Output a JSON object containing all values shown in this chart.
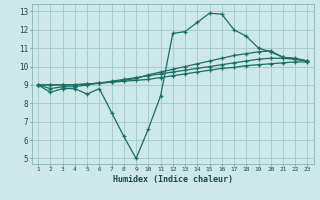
{
  "xlabel": "Humidex (Indice chaleur)",
  "bg_color": "#cce8e8",
  "grid_color": "#aacccc",
  "line_color": "#1a6e64",
  "xlim": [
    0.5,
    23.5
  ],
  "ylim": [
    4.7,
    13.4
  ],
  "xticks": [
    1,
    2,
    3,
    4,
    5,
    6,
    7,
    8,
    9,
    10,
    11,
    12,
    13,
    14,
    15,
    16,
    17,
    18,
    19,
    20,
    21,
    22,
    23
  ],
  "yticks": [
    5,
    6,
    7,
    8,
    9,
    10,
    11,
    12,
    13
  ],
  "lines": [
    [
      9.0,
      8.6,
      8.8,
      8.8,
      8.5,
      8.8,
      7.5,
      6.2,
      5.0,
      6.6,
      8.4,
      11.8,
      11.9,
      12.4,
      12.9,
      12.85,
      12.0,
      11.65,
      11.0,
      10.8,
      10.5,
      10.4,
      10.3
    ],
    [
      9.0,
      8.8,
      8.9,
      8.9,
      9.0,
      9.1,
      9.15,
      9.25,
      9.35,
      9.55,
      9.7,
      9.85,
      10.0,
      10.15,
      10.3,
      10.45,
      10.6,
      10.7,
      10.8,
      10.85,
      10.5,
      10.45,
      10.3
    ],
    [
      9.0,
      9.0,
      9.0,
      9.0,
      9.05,
      9.1,
      9.2,
      9.3,
      9.4,
      9.5,
      9.6,
      9.7,
      9.8,
      9.9,
      10.0,
      10.1,
      10.2,
      10.3,
      10.4,
      10.45,
      10.45,
      10.4,
      10.3
    ],
    [
      9.0,
      9.0,
      9.0,
      9.02,
      9.05,
      9.1,
      9.15,
      9.2,
      9.25,
      9.3,
      9.4,
      9.5,
      9.6,
      9.7,
      9.8,
      9.9,
      9.95,
      10.05,
      10.1,
      10.15,
      10.2,
      10.25,
      10.25
    ]
  ]
}
